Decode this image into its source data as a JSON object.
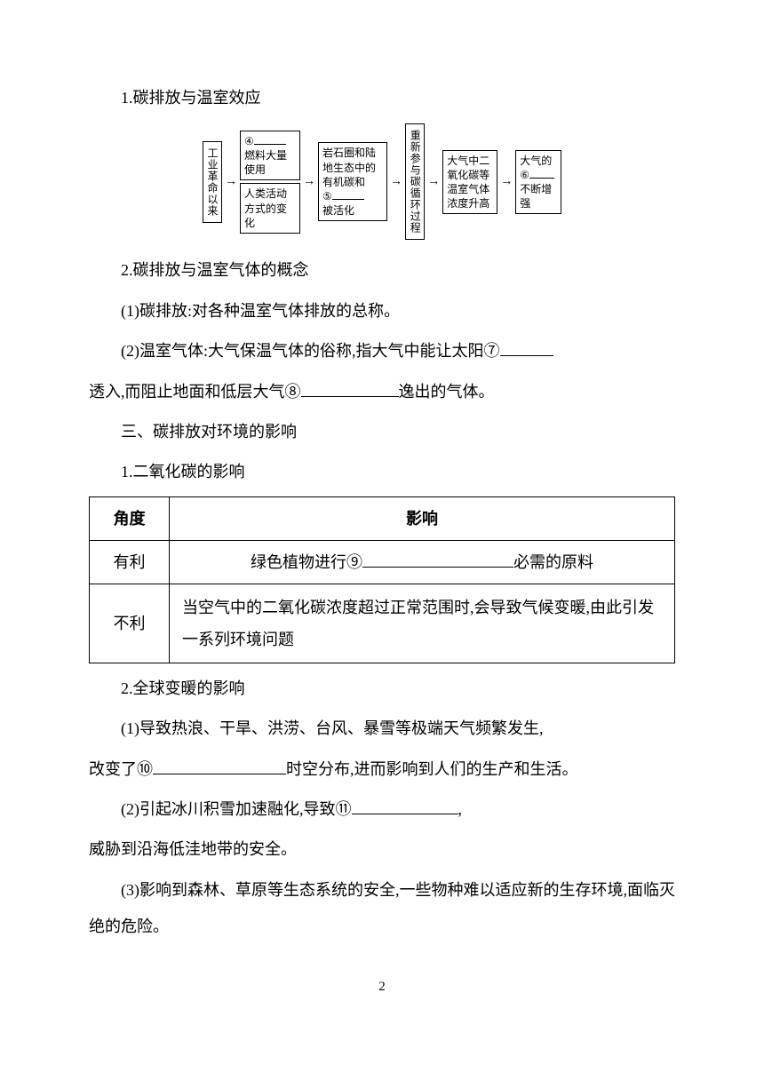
{
  "s1_heading": "1.碳排放与温室效应",
  "diagram": {
    "box1": "工业革命以来",
    "box2a_num": "④",
    "box2a_blank_width": 36,
    "box2a": "燃料大量使用",
    "box2b": "人类活动方式的变化",
    "box3_l1": "岩石圈和陆地生态中的有机碳和",
    "box3_num": "⑤",
    "box3_blank_width": 36,
    "box3_l3": "被活化",
    "box4": "重新参与碳循环过程",
    "box5": "大气中二氧化碳等温室气体浓度升高",
    "box6_l1": "大气的",
    "box6_num": "⑥",
    "box6_blank_width": 28,
    "box6_l2": "不断增强"
  },
  "s2_heading": "2.碳排放与温室气体的概念",
  "p_carbon": "(1)碳排放:对各种温室气体排放的总称。",
  "p_greenhouse_a": "(2)温室气体:大气保温气体的俗称,指大气中能让太阳⑦",
  "blank7_width": 60,
  "p_greenhouse_b": "透入,而阻止地面和低层大气⑧",
  "blank8_width": 110,
  "p_greenhouse_c": "逸出的气体。",
  "s3_heading": "三、碳排放对环境的影响",
  "s3_sub1": "1.二氧化碳的影响",
  "table": {
    "h1": "角度",
    "h2": "影响",
    "r1c1": "有利",
    "r1c2_a": "绿色植物进行⑨",
    "blank9_width": 170,
    "r1c2_b": "必需的原料",
    "r2c1": "不利",
    "r2c2": "当空气中的二氧化碳浓度超过正常范围时,会导致气候变暖,由此引发一系列环境问题"
  },
  "s3_sub2": "2.全球变暖的影响",
  "p_eff1_a": "(1)导致热浪、干旱、洪涝、台风、暴雪等极端天气频繁发生,",
  "p_eff1_b": "改变了⑩",
  "blank10_width": 150,
  "p_eff1_c": "时空分布,进而影响到人们的生产和生活。",
  "p_eff2_a": "(2)引起冰川积雪加速融化,导致⑪",
  "blank11_width": 120,
  "p_eff2_b": ",",
  "p_eff2_c": "威胁到沿海低洼地带的安全。",
  "p_eff3": "(3)影响到森林、草原等生态系统的安全,一些物种难以适应新的生存环境,面临灭绝的危险。",
  "page_number": "2"
}
